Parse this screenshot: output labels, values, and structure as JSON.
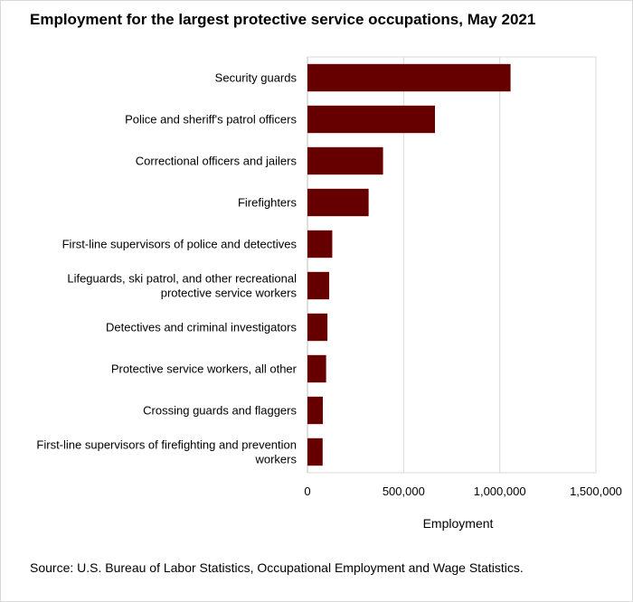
{
  "title": "Employment  for the largest protective service occupations, May 2021",
  "source": "Source: U.S. Bureau of Labor Statistics, Occupational Employment  and Wage Statistics.",
  "chart_data": {
    "type": "bar",
    "orientation": "horizontal",
    "title": "Employment  for the largest protective service occupations, May 2021",
    "xlabel": "Employment",
    "ylabel": "",
    "xlim": [
      0,
      1500000
    ],
    "xticks": [
      0,
      500000,
      1000000,
      1500000
    ],
    "xtick_labels": [
      "0",
      "500,000",
      "1,000,000",
      "1,500,000"
    ],
    "grid": "vertical",
    "bar_color": "#660000",
    "categories": [
      [
        "Security guards"
      ],
      [
        "Police and sheriff's patrol officers"
      ],
      [
        "Correctional officers and jailers"
      ],
      [
        "Firefighters"
      ],
      [
        "First-line supervisors of police and detectives"
      ],
      [
        "Lifeguards, ski patrol, and other recreational",
        "protective service workers"
      ],
      [
        "Detectives and criminal investigators"
      ],
      [
        "Protective service workers, all other"
      ],
      [
        "Crossing guards and flaggers"
      ],
      [
        "First-line supervisors of firefighting and prevention",
        "workers"
      ]
    ],
    "values": [
      1056000,
      663000,
      393000,
      318000,
      129000,
      113000,
      104000,
      97000,
      80000,
      79000
    ]
  }
}
